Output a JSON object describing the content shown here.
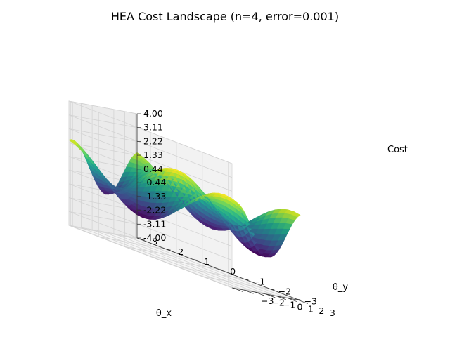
{
  "chart_data": {
    "type": "surface3d",
    "title": "HEA Cost Landscape (n=4, error=0.001)",
    "xlabel": "θ_x",
    "ylabel": "θ_y",
    "zlabel": "Cost",
    "xticks": [
      "−3",
      "−2",
      "−1",
      "0",
      "1",
      "2",
      "3"
    ],
    "yticks": [
      "−3",
      "−2",
      "−1",
      "0",
      "1",
      "2",
      "3"
    ],
    "zticks": [
      "-4.00",
      "-3.11",
      "-2.22",
      "-1.33",
      "-0.44",
      "0.44",
      "1.33",
      "2.22",
      "3.11",
      "4.00"
    ],
    "x_range": [
      -3.14159,
      3.14159
    ],
    "y_range": [
      -3.14159,
      3.14159
    ],
    "zlim": [
      -4.0,
      4.0
    ],
    "colormap": "viridis",
    "grid": true
  }
}
